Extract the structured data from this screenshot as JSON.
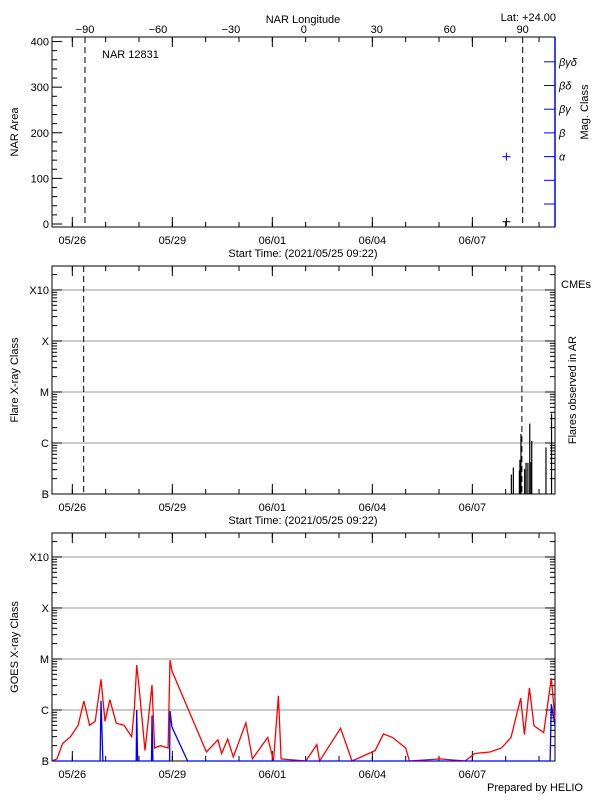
{
  "chart_data": [
    {
      "type": "scatter",
      "panel": "nar",
      "title": "NAR 12831",
      "corner_label": "Lat: +24.00",
      "top_axis_label": "NAR Longitude",
      "top_axis_ticks": [
        -90,
        -60,
        -30,
        0,
        30,
        60,
        90
      ],
      "top_axis_range": [
        -103.7,
        103.4
      ],
      "limb_markers_longitude": [
        -90,
        90
      ],
      "ylabel": "NAR Area",
      "ylim": [
        -6.6,
        410
      ],
      "yticks": [
        0,
        100,
        200,
        300,
        400
      ],
      "right_axis_label": "Mag. Class",
      "right_axis_color": "#0000ff",
      "right_axis_ticks": [
        "",
        "",
        "α",
        "β",
        "βγ",
        "βδ",
        "βγδ"
      ],
      "xlabel": "Start Time: (2021/05/25 09:22)",
      "xlim": [
        "2021-05-25 09:22",
        "2021-06-09 11:30"
      ],
      "xticks": [
        "05/26",
        "05/29",
        "06/01",
        "06/04",
        "06/07"
      ],
      "area_points": [
        {
          "time": "2021-06-08 00:30",
          "area": 5,
          "color": "#000000"
        }
      ],
      "mag_class_points": [
        {
          "time": "2021-06-08 00:30",
          "mag_class": "α",
          "color": "#0000ff"
        }
      ]
    },
    {
      "type": "bar",
      "panel": "flares",
      "ylabel": "Flare X-ray Class",
      "right_axis_label": "Flares observed in AR",
      "cme_label": "CMEs",
      "cme_color": "#ff0000",
      "xlabel": "Start Time: (2021/05/25 09:22)",
      "xlim": [
        "2021-05-25 09:22",
        "2021-06-09 11:30"
      ],
      "xticks": [
        "05/26",
        "05/29",
        "06/01",
        "06/04",
        "06/07"
      ],
      "yscale": "log",
      "ylim_flux": [
        1e-07,
        0.00295
      ],
      "yticks": [
        {
          "label": "B",
          "flux": 1e-07
        },
        {
          "label": "C",
          "flux": 1e-06
        },
        {
          "label": "M",
          "flux": 1e-05
        },
        {
          "label": "X",
          "flux": 0.0001
        },
        {
          "label": "X10",
          "flux": 0.001
        }
      ],
      "grid": true,
      "limb_marker_times": [
        "2021-05-26 08:10",
        "2021-06-08 11:40"
      ],
      "flares": [
        {
          "time": "2021-06-08 04:05",
          "flux": 2.4e-07
        },
        {
          "time": "2021-06-08 05:30",
          "flux": 3.3e-07
        },
        {
          "time": "2021-06-08 09:50",
          "flux": 2.9e-07
        },
        {
          "time": "2021-06-08 10:15",
          "flux": 4.7e-07
        },
        {
          "time": "2021-06-08 11:00",
          "flux": 1.5e-06
        },
        {
          "time": "2021-06-08 13:40",
          "flux": 3.1e-07
        },
        {
          "time": "2021-06-08 14:40",
          "flux": 4.1e-07
        },
        {
          "time": "2021-06-08 16:00",
          "flux": 4.1e-07
        },
        {
          "time": "2021-06-08 17:20",
          "flux": 2.4e-06
        },
        {
          "time": "2021-06-08 18:15",
          "flux": 4.2e-07
        },
        {
          "time": "2021-06-08 18:45",
          "flux": 1.1e-06
        },
        {
          "time": "2021-06-09 05:00",
          "flux": 8.2e-07
        },
        {
          "time": "2021-06-09 09:00",
          "flux": 3.8e-06
        }
      ]
    },
    {
      "type": "line",
      "panel": "goes",
      "ylabel": "GOES X-ray Class",
      "xlim": [
        "2021-05-25 09:22",
        "2021-06-09 11:30"
      ],
      "xticks": [
        "05/26",
        "05/29",
        "06/01",
        "06/04",
        "06/07"
      ],
      "yscale": "log",
      "ylim_flux": [
        1e-07,
        0.00295
      ],
      "yticks": [
        {
          "label": "B",
          "flux": 1e-07
        },
        {
          "label": "C",
          "flux": 1e-06
        },
        {
          "label": "M",
          "flux": 1e-05
        },
        {
          "label": "X",
          "flux": 0.0001
        },
        {
          "label": "X10",
          "flux": 0.001
        }
      ],
      "grid": true,
      "series": [
        {
          "color": "#ff0000",
          "points": [
            [
              "2021-05-25 09:22",
              1e-07
            ],
            [
              "2021-05-25 13:00",
              1.1e-07
            ],
            [
              "2021-05-25 17:00",
              2.2e-07
            ],
            [
              "2021-05-25 22:40",
              3e-07
            ],
            [
              "2021-05-26 04:10",
              5e-07
            ],
            [
              "2021-05-26 08:20",
              1.5e-06
            ],
            [
              "2021-05-26 12:25",
              5e-07
            ],
            [
              "2021-05-26 16:30",
              6e-07
            ],
            [
              "2021-05-26 20:40",
              4e-06
            ],
            [
              "2021-05-26 23:30",
              6e-07
            ],
            [
              "2021-05-27 03:00",
              1.6e-06
            ],
            [
              "2021-05-27 07:40",
              5.5e-07
            ],
            [
              "2021-05-27 13:15",
              5e-07
            ],
            [
              "2021-05-27 18:45",
              3e-07
            ],
            [
              "2021-05-27 20:40",
              1.1e-06
            ],
            [
              "2021-05-27 22:20",
              7.6e-06
            ],
            [
              "2021-05-28 00:15",
              2.5e-06
            ],
            [
              "2021-05-28 04:20",
              1.6e-07
            ],
            [
              "2021-05-28 09:20",
              3.1e-06
            ],
            [
              "2021-05-28 11:15",
              1.8e-07
            ],
            [
              "2021-05-28 15:25",
              2e-07
            ],
            [
              "2021-05-28 20:55",
              1.8e-07
            ],
            [
              "2021-05-28 22:20",
              9.5e-06
            ],
            [
              "2021-05-28 23:45",
              5.8e-06
            ],
            [
              "2021-05-30 00:30",
              1.5e-07
            ],
            [
              "2021-05-30 08:50",
              2.6e-07
            ],
            [
              "2021-05-30 11:30",
              1.4e-07
            ],
            [
              "2021-05-30 15:50",
              2.7e-07
            ],
            [
              "2021-05-30 19:55",
              1.2e-07
            ],
            [
              "2021-05-31 05:00",
              5.6e-07
            ],
            [
              "2021-05-31 09:40",
              1.1e-07
            ],
            [
              "2021-05-31 20:40",
              2.9e-07
            ],
            [
              "2021-06-01 00:50",
              1e-07
            ],
            [
              "2021-06-01 04:20",
              1.9e-06
            ],
            [
              "2021-06-01 06:20",
              1.1e-07
            ],
            [
              "2021-06-02 00:10",
              1e-07
            ],
            [
              "2021-06-02 08:00",
              2.1e-07
            ],
            [
              "2021-06-02 10:00",
              1e-07
            ],
            [
              "2021-06-03 01:10",
              4.4e-07
            ],
            [
              "2021-06-03 09:20",
              1e-07
            ],
            [
              "2021-06-04 02:00",
              1.6e-07
            ],
            [
              "2021-06-04 08:00",
              3.4e-07
            ],
            [
              "2021-06-04 14:25",
              2.9e-07
            ],
            [
              "2021-06-05 00:00",
              1.8e-07
            ],
            [
              "2021-06-05 02:40",
              1e-07
            ],
            [
              "2021-06-06 00:45",
              1.1e-07
            ],
            [
              "2021-06-06 18:45",
              1e-07
            ],
            [
              "2021-06-07 01:40",
              1.4e-07
            ],
            [
              "2021-06-07 12:40",
              1.5e-07
            ],
            [
              "2021-06-07 20:55",
              1.8e-07
            ],
            [
              "2021-06-08 03:50",
              2.9e-07
            ],
            [
              "2021-06-08 10:50",
              1.7e-06
            ],
            [
              "2021-06-08 13:30",
              3.3e-07
            ],
            [
              "2021-06-08 17:05",
              2.7e-06
            ],
            [
              "2021-06-08 20:25",
              4.9e-07
            ],
            [
              "2021-06-09 03:20",
              3.6e-07
            ],
            [
              "2021-06-09 08:50",
              4.2e-06
            ],
            [
              "2021-06-09 11:30",
              6.5e-07
            ]
          ]
        },
        {
          "color": "#0000ff",
          "points": [
            [
              "2021-05-25 09:22",
              5e-08
            ],
            [
              "2021-05-26 20:00",
              5e-08
            ],
            [
              "2021-05-26 20:40",
              1.5e-06
            ],
            [
              "2021-05-26 22:00",
              5e-08
            ],
            [
              "2021-05-27 22:00",
              5e-08
            ],
            [
              "2021-05-27 22:20",
              1e-06
            ],
            [
              "2021-05-27 23:00",
              5e-08
            ],
            [
              "2021-05-28 09:00",
              5e-08
            ],
            [
              "2021-05-28 09:20",
              7.8e-07
            ],
            [
              "2021-05-28 10:00",
              5e-08
            ],
            [
              "2021-05-28 22:00",
              5e-08
            ],
            [
              "2021-05-28 22:20",
              9.5e-07
            ],
            [
              "2021-05-28 23:45",
              4.6e-07
            ],
            [
              "2021-05-29 11:00",
              1e-07
            ],
            [
              "2021-05-29 12:00",
              5e-08
            ],
            [
              "2021-06-09 08:00",
              5e-08
            ],
            [
              "2021-06-09 08:50",
              1.3e-06
            ],
            [
              "2021-06-09 11:30",
              5e-07
            ]
          ]
        }
      ],
      "footer": "Prepared by HELIO"
    }
  ]
}
